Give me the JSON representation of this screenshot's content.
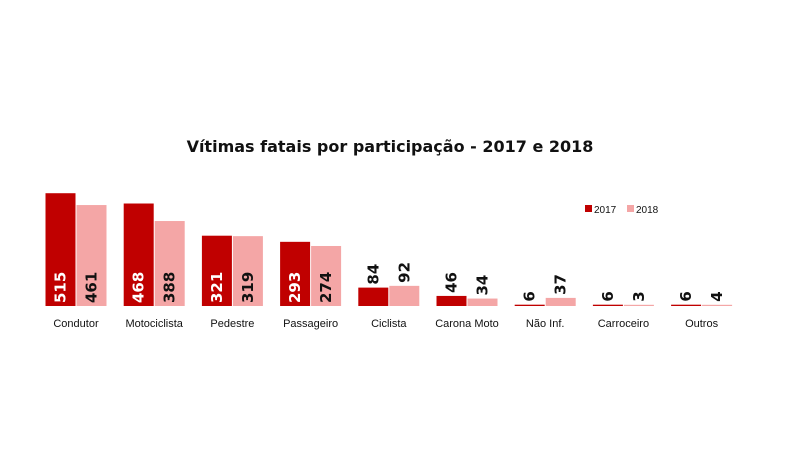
{
  "chart_data": {
    "type": "bar",
    "title": "Vítimas  fatais por participação  - 2017 e 2018",
    "xlabel": "",
    "ylabel": "",
    "ylim": [
      0,
      520
    ],
    "grid": false,
    "legend": "top-right",
    "categories": [
      "Condutor",
      "Motociclista",
      "Pedestre",
      "Passageiro",
      "Ciclista",
      "Carona Moto",
      "Não Inf.",
      "Carroceiro",
      "Outros"
    ],
    "series": [
      {
        "name": "2017",
        "color": "#c00000",
        "values": [
          515,
          468,
          321,
          293,
          84,
          46,
          6,
          6,
          6
        ]
      },
      {
        "name": "2018",
        "color": "#f4a6a6",
        "values": [
          461,
          388,
          319,
          274,
          92,
          34,
          37,
          3,
          4
        ]
      }
    ]
  }
}
